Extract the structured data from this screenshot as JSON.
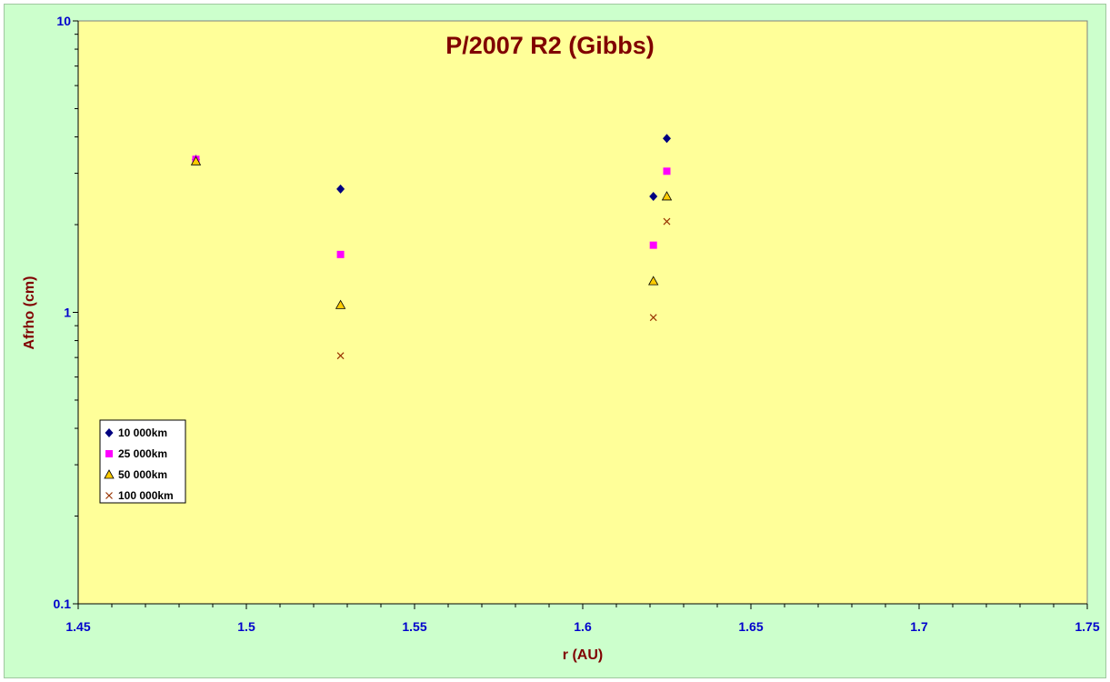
{
  "chart_data": {
    "type": "scatter",
    "title": "P/2007 R2 (Gibbs)",
    "xlabel": "r (AU)",
    "ylabel": "Afrho (cm)",
    "xlim": [
      1.45,
      1.75
    ],
    "ylim": [
      0.1,
      10
    ],
    "yscale": "log",
    "grid": false,
    "legend_position": "left",
    "x_ticks": [
      "1.45",
      "1.5",
      "1.55",
      "1.6",
      "1.65",
      "1.7",
      "1.75"
    ],
    "y_ticks": [
      "0.1",
      "1",
      "10"
    ],
    "colors": {
      "plot_background": "#ffff99",
      "chart_background": "#ccffcc",
      "title": "#800000",
      "tick_labels": "#0000cc"
    },
    "series": [
      {
        "name": "10 000km",
        "marker": "diamond",
        "color": "#000080",
        "points": [
          [
            1.485,
            3.35
          ],
          [
            1.528,
            2.65
          ],
          [
            1.621,
            2.5
          ],
          [
            1.625,
            3.95
          ]
        ]
      },
      {
        "name": "25 000km",
        "marker": "square",
        "color": "#ff00ff",
        "points": [
          [
            1.485,
            3.35
          ],
          [
            1.528,
            1.58
          ],
          [
            1.621,
            1.7
          ],
          [
            1.625,
            3.05
          ]
        ]
      },
      {
        "name": "50 000km",
        "marker": "triangle",
        "color": "#ffcc00",
        "points": [
          [
            1.485,
            3.3
          ],
          [
            1.528,
            1.06
          ],
          [
            1.621,
            1.28
          ],
          [
            1.625,
            2.5
          ]
        ]
      },
      {
        "name": "100 000km",
        "marker": "x",
        "color": "#993300",
        "points": [
          [
            1.528,
            0.71
          ],
          [
            1.621,
            0.96
          ],
          [
            1.625,
            2.05
          ]
        ]
      }
    ]
  }
}
